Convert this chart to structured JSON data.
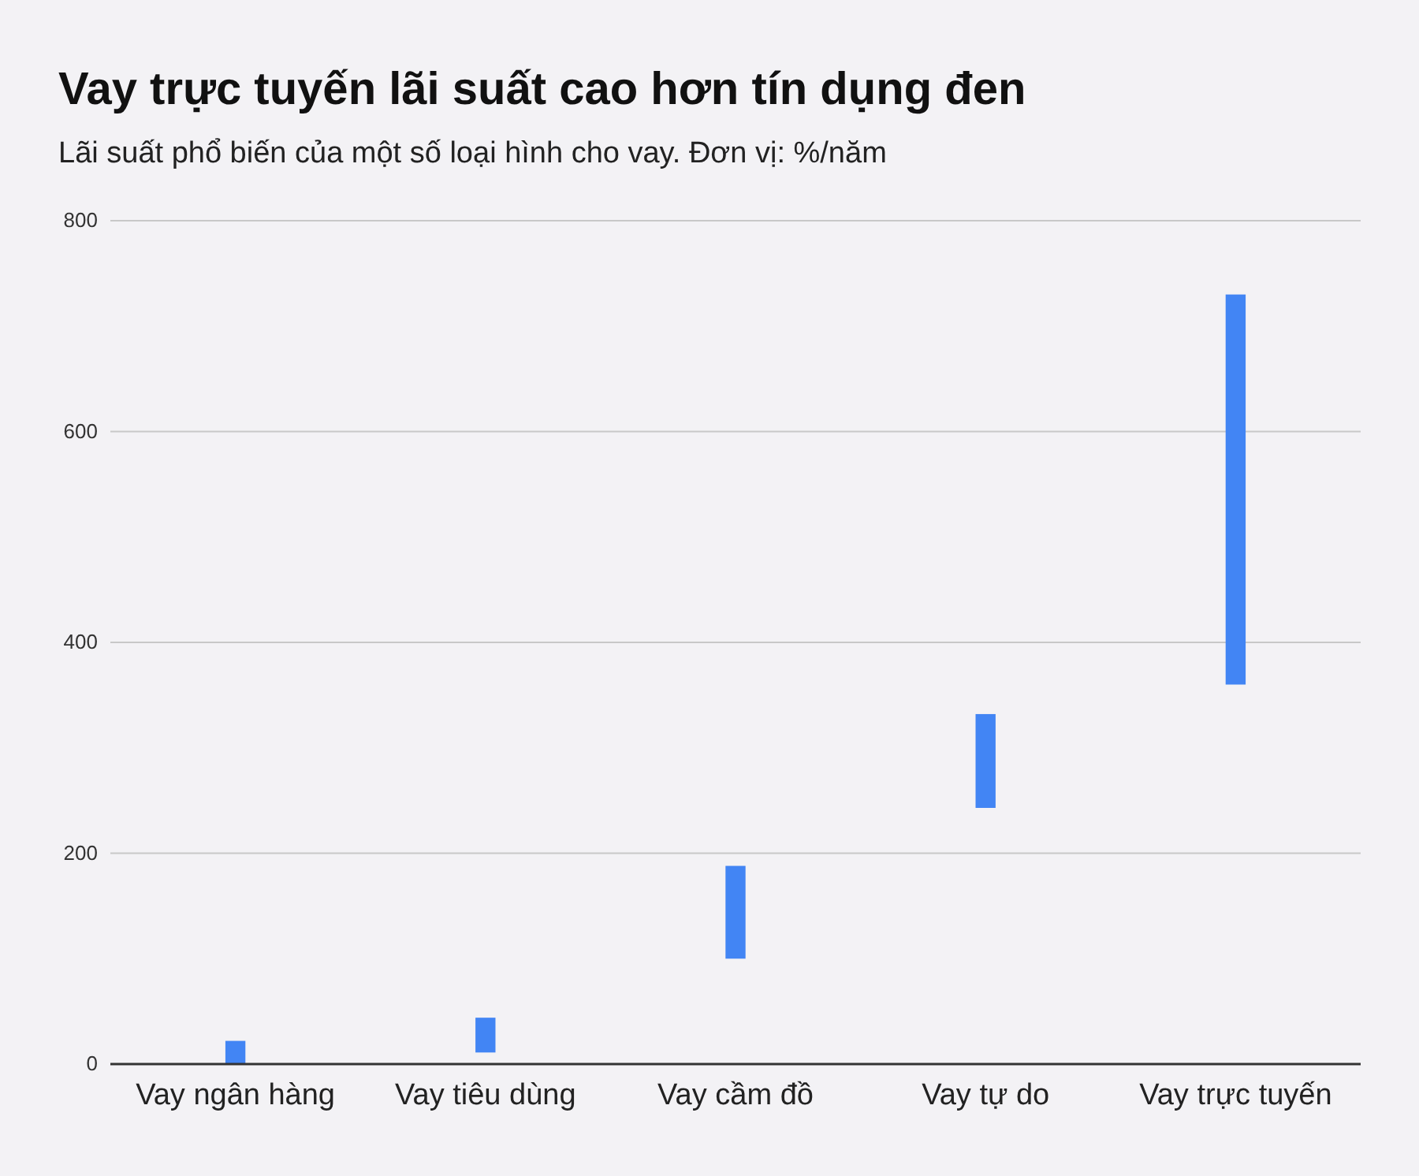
{
  "chart_data": {
    "type": "bar",
    "title": "Vay trực tuyến lãi suất cao hơn tín dụng đen",
    "subtitle": "Lãi suất phổ biến của một số loại hình cho vay. Đơn vị: %/năm",
    "categories": [
      "Vay ngân hàng",
      "Vay tiêu dùng",
      "Vay cầm đồ",
      "Vay tự do",
      "Vay trực tuyến"
    ],
    "base": [
      0,
      11,
      100,
      243,
      360
    ],
    "values": [
      22,
      33,
      88,
      89,
      370
    ],
    "color": "#4285f4",
    "ylim": [
      0,
      800
    ],
    "yticks": [
      0,
      200,
      400,
      600,
      800
    ],
    "grid": "y"
  }
}
